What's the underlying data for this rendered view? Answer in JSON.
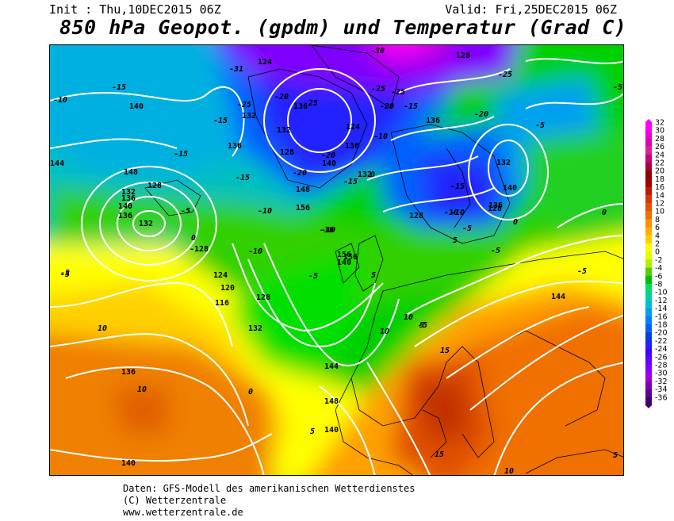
{
  "header": {
    "init": "Init : Thu,10DEC2015 06Z",
    "valid": "Valid: Fri,25DEC2015 06Z",
    "title": "850 hPa Geopot. (gpdm) und Temperatur (Grad C)"
  },
  "legend": {
    "labels": [
      "32",
      "30",
      "28",
      "26",
      "24",
      "22",
      "20",
      "18",
      "16",
      "14",
      "12",
      "10",
      "8",
      "6",
      "4",
      "2",
      "0",
      "-2",
      "-4",
      "-6",
      "-8",
      "-10",
      "-12",
      "-14",
      "-16",
      "-18",
      "-20",
      "-22",
      "-24",
      "-26",
      "-28",
      "-30",
      "-32",
      "-34",
      "-36"
    ],
    "colors": [
      "#ff00ff",
      "#f000d8",
      "#e000b8",
      "#d8209a",
      "#c8007a",
      "#a8003c",
      "#900000",
      "#a00000",
      "#c01800",
      "#d83800",
      "#e85000",
      "#f07000",
      "#ff9000",
      "#ffb000",
      "#ffd000",
      "#ffff00",
      "#e0ff00",
      "#b0f000",
      "#50d000",
      "#00c000",
      "#00e060",
      "#00d0a0",
      "#00c0d0",
      "#00a0f0",
      "#0080ff",
      "#0060ff",
      "#0040e0",
      "#2020ff",
      "#4000ff",
      "#6000ff",
      "#8000ff",
      "#a000e0",
      "#8000b0",
      "#600090",
      "#400070"
    ]
  },
  "footer": {
    "line1": "Daten: GFS-Modell des amerikanischen Wetterdienstes",
    "line2": "(C) Wetterzentrale",
    "line3": "www.wetterzentrale.de"
  },
  "map": {
    "geopotential_labels": [
      "124",
      "128",
      "132",
      "136",
      "140",
      "144",
      "148",
      "128",
      "132",
      "136",
      "140",
      "136",
      "132",
      "-128",
      "124",
      "120",
      "116",
      "128",
      "132",
      "136",
      "140",
      "144",
      "148",
      "140",
      "144",
      "148",
      "156",
      "156",
      "140",
      "136",
      "132",
      "128",
      "124",
      "136",
      "140",
      "132",
      "128",
      "136",
      "132",
      "140",
      "136",
      "156",
      "128"
    ],
    "temperature_labels": [
      "-30",
      "-31",
      "-25",
      "-20",
      "-25",
      "-15",
      "-10",
      "-15",
      "-20",
      "-15",
      "-20",
      "-25",
      "-15",
      "-20",
      "-20",
      "-10",
      "-15",
      "-10",
      "-5",
      "0",
      "-15",
      "-10",
      "-5",
      "-5",
      "0",
      "5",
      "-5",
      "0",
      "-5",
      "-10",
      "-15",
      "-10",
      "-5",
      "-5",
      "-10",
      "-5",
      "0",
      "5",
      "10",
      "10",
      "15",
      "10",
      "15",
      "5",
      "10",
      "5",
      "5",
      "10",
      "0",
      "-25",
      "-5",
      "-5",
      "-10",
      "-25"
    ]
  }
}
